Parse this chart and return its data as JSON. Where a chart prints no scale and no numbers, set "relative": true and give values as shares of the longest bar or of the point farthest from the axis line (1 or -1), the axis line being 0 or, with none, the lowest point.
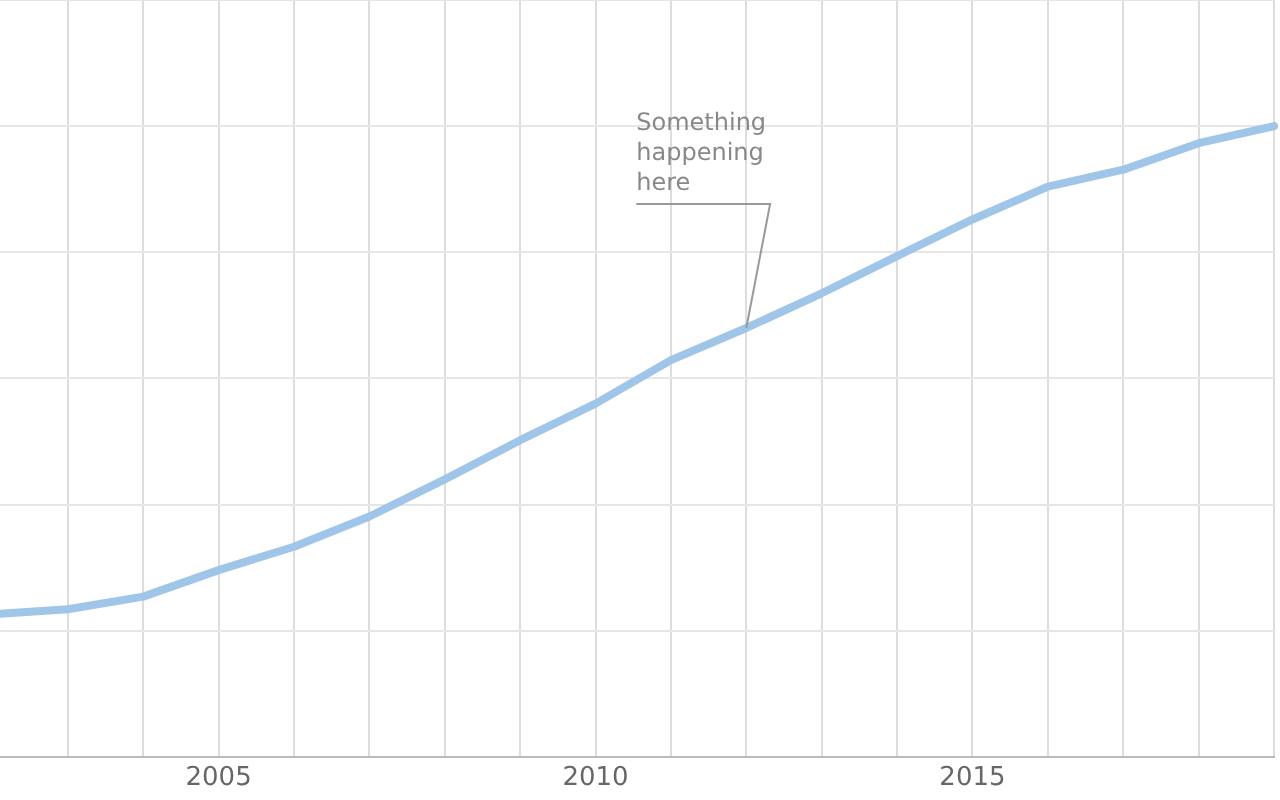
{
  "chart_data": {
    "type": "line",
    "relative": true,
    "x": [
      2002.1,
      2003,
      2004,
      2005,
      2006,
      2007,
      2008,
      2009,
      2010,
      2011,
      2012,
      2013,
      2014,
      2015,
      2016,
      2017,
      2018,
      2019
    ],
    "series": [
      {
        "color": "#9fc5e8",
        "values": [
          0.227,
          0.234,
          0.254,
          0.296,
          0.333,
          0.381,
          0.44,
          0.502,
          0.56,
          0.629,
          0.68,
          0.735,
          0.794,
          0.852,
          0.904,
          0.931,
          0.973,
          1
        ]
      }
    ],
    "xlim": [
      2002.1,
      2019
    ],
    "xticks": [
      {
        "value": 2003,
        "label": null
      },
      {
        "value": 2004,
        "label": null
      },
      2005,
      {
        "value": 2006,
        "label": null
      },
      {
        "value": 2007,
        "label": null
      },
      {
        "value": 2008,
        "label": null
      },
      {
        "value": 2009,
        "label": null
      },
      2010,
      {
        "value": 2011,
        "label": null
      },
      {
        "value": 2012,
        "label": null
      },
      {
        "value": 2013,
        "label": null
      },
      {
        "value": 2014,
        "label": null
      },
      2015,
      {
        "value": 2016,
        "label": null
      },
      {
        "value": 2017,
        "label": null
      },
      {
        "value": 2018,
        "label": null
      },
      {
        "value": 2019,
        "label": null
      }
    ],
    "annotations": [
      {
        "text": "Something happening here",
        "x": 2012,
        "y": 0.68
      }
    ],
    "grid": true,
    "legend": false,
    "marker": "none",
    "line_style": "solid"
  }
}
